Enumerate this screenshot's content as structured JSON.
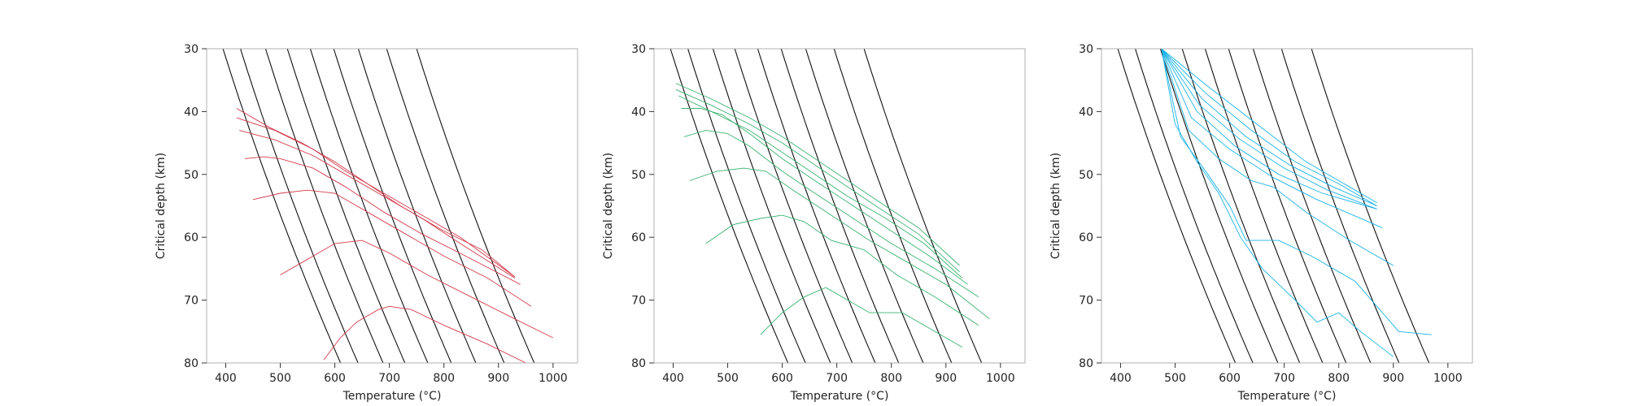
{
  "colors": {
    "spine": "#b0b0b0",
    "geotherm": "#111111",
    "panel_1": "#d33b4b",
    "panel_2": "#3cb371",
    "panel_3": "#1cb3e6"
  },
  "chart_data": [
    {
      "type": "line",
      "xlabel": "Temperature (°C)",
      "ylabel": "Critical depth (km)",
      "xlim": [
        365,
        1045
      ],
      "ylim": [
        80,
        30
      ],
      "y_inverted": true,
      "xticks": [
        400,
        500,
        600,
        700,
        800,
        900,
        1000
      ],
      "yticks": [
        30,
        40,
        50,
        60,
        70,
        80
      ],
      "grid": false,
      "line_color": "#d33b4b",
      "geotherms": [
        [
          395,
          30
        ],
        [
          427,
          30
        ],
        [
          473,
          30
        ],
        [
          513,
          30
        ],
        [
          555,
          30
        ],
        [
          598,
          30
        ],
        [
          643,
          30
        ],
        [
          695,
          30
        ],
        [
          750,
          30
        ]
      ],
      "series": [
        {
          "values": [
            [
              420,
              39.5
            ],
            [
              480,
              42.5
            ],
            [
              540,
              45
            ],
            [
              600,
              48
            ],
            [
              660,
              51.5
            ],
            [
              720,
              55
            ],
            [
              800,
              59
            ],
            [
              870,
              62
            ],
            [
              930,
              66.3
            ]
          ]
        },
        {
          "values": [
            [
              420,
              41
            ],
            [
              490,
              43
            ],
            [
              560,
              46
            ],
            [
              620,
              49.5
            ],
            [
              690,
              53
            ],
            [
              760,
              56.5
            ],
            [
              830,
              60
            ],
            [
              930,
              66.3
            ]
          ]
        },
        {
          "values": [
            [
              425,
              43
            ],
            [
              490,
              44.5
            ],
            [
              560,
              47
            ],
            [
              620,
              50
            ],
            [
              690,
              53.5
            ],
            [
              760,
              57
            ],
            [
              830,
              61
            ],
            [
              930,
              66.5
            ]
          ]
        },
        {
          "values": [
            [
              435,
              47.5
            ],
            [
              470,
              47.2
            ],
            [
              500,
              47.5
            ],
            [
              560,
              49
            ],
            [
              620,
              52
            ],
            [
              690,
              56
            ],
            [
              760,
              59.5
            ],
            [
              840,
              63
            ],
            [
              940,
              67.5
            ]
          ]
        },
        {
          "values": [
            [
              450,
              54
            ],
            [
              500,
              53
            ],
            [
              550,
              52.5
            ],
            [
              600,
              53
            ],
            [
              660,
              56
            ],
            [
              730,
              59.5
            ],
            [
              800,
              63
            ],
            [
              880,
              66.5
            ],
            [
              960,
              71
            ]
          ]
        },
        {
          "values": [
            [
              500,
              66
            ],
            [
              550,
              63.5
            ],
            [
              600,
              61
            ],
            [
              650,
              60.5
            ],
            [
              700,
              62.5
            ],
            [
              770,
              66
            ],
            [
              850,
              69.5
            ],
            [
              930,
              73
            ],
            [
              1000,
              76
            ]
          ]
        },
        {
          "values": [
            [
              580,
              79.5
            ],
            [
              610,
              76
            ],
            [
              640,
              73.5
            ],
            [
              680,
              71.5
            ],
            [
              700,
              71
            ],
            [
              740,
              71.5
            ],
            [
              800,
              74
            ],
            [
              880,
              77
            ],
            [
              950,
              80
            ]
          ]
        }
      ]
    },
    {
      "type": "line",
      "xlabel": "Temperature (°C)",
      "ylabel": "Critical depth (km)",
      "xlim": [
        365,
        1045
      ],
      "ylim": [
        80,
        30
      ],
      "y_inverted": true,
      "xticks": [
        400,
        500,
        600,
        700,
        800,
        900,
        1000
      ],
      "yticks": [
        30,
        40,
        50,
        60,
        70,
        80
      ],
      "grid": false,
      "line_color": "#3cb371",
      "geotherms": [
        [
          395,
          30
        ],
        [
          427,
          30
        ],
        [
          473,
          30
        ],
        [
          513,
          30
        ],
        [
          555,
          30
        ],
        [
          598,
          30
        ],
        [
          643,
          30
        ],
        [
          695,
          30
        ],
        [
          750,
          30
        ]
      ],
      "series": [
        {
          "values": [
            [
              405,
              35.5
            ],
            [
              470,
              38
            ],
            [
              540,
              41
            ],
            [
              600,
              44
            ],
            [
              660,
              47.5
            ],
            [
              720,
              51
            ],
            [
              780,
              54.5
            ],
            [
              850,
              58.5
            ],
            [
              925,
              64.5
            ]
          ]
        },
        {
          "values": [
            [
              405,
              36.5
            ],
            [
              470,
              39
            ],
            [
              540,
              42
            ],
            [
              600,
              45
            ],
            [
              660,
              48.5
            ],
            [
              720,
              52
            ],
            [
              780,
              55.5
            ],
            [
              850,
              59.5
            ],
            [
              925,
              65.5
            ]
          ]
        },
        {
          "values": [
            [
              410,
              37.5
            ],
            [
              470,
              40
            ],
            [
              540,
              43
            ],
            [
              600,
              46.5
            ],
            [
              660,
              50
            ],
            [
              720,
              53.5
            ],
            [
              790,
              57
            ],
            [
              860,
              61
            ],
            [
              930,
              66.5
            ]
          ]
        },
        {
          "values": [
            [
              415,
              39.5
            ],
            [
              450,
              39.5
            ],
            [
              490,
              40.5
            ],
            [
              540,
              43.5
            ],
            [
              600,
              47.5
            ],
            [
              660,
              51
            ],
            [
              730,
              55
            ],
            [
              800,
              59
            ],
            [
              870,
              63
            ],
            [
              940,
              67.5
            ]
          ]
        },
        {
          "values": [
            [
              420,
              44
            ],
            [
              460,
              43
            ],
            [
              500,
              43.5
            ],
            [
              540,
              45.5
            ],
            [
              600,
              49.5
            ],
            [
              660,
              53
            ],
            [
              730,
              57
            ],
            [
              800,
              61
            ],
            [
              880,
              65
            ],
            [
              960,
              69.5
            ]
          ]
        },
        {
          "values": [
            [
              430,
              51
            ],
            [
              480,
              49.5
            ],
            [
              530,
              49
            ],
            [
              570,
              49.5
            ],
            [
              620,
              52.5
            ],
            [
              690,
              56.5
            ],
            [
              760,
              60.5
            ],
            [
              830,
              64
            ],
            [
              900,
              67.5
            ],
            [
              980,
              73
            ]
          ]
        },
        {
          "values": [
            [
              460,
              61
            ],
            [
              510,
              58
            ],
            [
              560,
              57
            ],
            [
              600,
              56.5
            ],
            [
              640,
              57.5
            ],
            [
              690,
              60.5
            ],
            [
              750,
              62
            ],
            [
              810,
              66
            ],
            [
              880,
              69.5
            ],
            [
              960,
              74
            ]
          ]
        },
        {
          "values": [
            [
              560,
              75.5
            ],
            [
              600,
              72
            ],
            [
              640,
              69.5
            ],
            [
              680,
              68
            ],
            [
              720,
              70
            ],
            [
              760,
              72
            ],
            [
              820,
              72
            ],
            [
              870,
              74.5
            ],
            [
              930,
              77.5
            ]
          ]
        }
      ]
    },
    {
      "type": "line",
      "xlabel": "Temperature (°C)",
      "ylabel": "Critical depth (km)",
      "xlim": [
        365,
        1045
      ],
      "ylim": [
        80,
        30
      ],
      "y_inverted": true,
      "xticks": [
        400,
        500,
        600,
        700,
        800,
        900,
        1000
      ],
      "yticks": [
        30,
        40,
        50,
        60,
        70,
        80
      ],
      "grid": false,
      "line_color": "#1cb3e6",
      "geotherms": [
        [
          395,
          30
        ],
        [
          427,
          30
        ],
        [
          473,
          30
        ],
        [
          513,
          30
        ],
        [
          555,
          30
        ],
        [
          598,
          30
        ],
        [
          643,
          30
        ],
        [
          695,
          30
        ],
        [
          750,
          30
        ]
      ],
      "series": [
        {
          "values": [
            [
              395,
              30
            ],
            [
              475,
              30
            ],
            [
              560,
              36
            ],
            [
              650,
              42
            ],
            [
              740,
              48
            ],
            [
              800,
              51
            ],
            [
              870,
              54.5
            ]
          ]
        },
        {
          "values": [
            [
              395,
              30
            ],
            [
              475,
              30
            ],
            [
              555,
              37
            ],
            [
              640,
              43
            ],
            [
              720,
              48
            ],
            [
              800,
              51.5
            ],
            [
              870,
              55
            ]
          ]
        },
        {
          "values": [
            [
              395,
              30
            ],
            [
              475,
              30
            ],
            [
              550,
              38
            ],
            [
              630,
              44
            ],
            [
              710,
              48.5
            ],
            [
              790,
              52
            ],
            [
              870,
              55
            ]
          ]
        },
        {
          "values": [
            [
              395,
              30
            ],
            [
              475,
              30
            ],
            [
              545,
              39
            ],
            [
              620,
              44.5
            ],
            [
              700,
              49
            ],
            [
              780,
              52.5
            ],
            [
              870,
              55.5
            ]
          ]
        },
        {
          "values": [
            [
              395,
              30
            ],
            [
              475,
              30
            ],
            [
              540,
              40
            ],
            [
              610,
              45.5
            ],
            [
              690,
              50
            ],
            [
              770,
              53
            ],
            [
              870,
              55.5
            ]
          ]
        },
        {
          "values": [
            [
              395,
              30
            ],
            [
              475,
              30
            ],
            [
              530,
              41
            ],
            [
              600,
              46
            ],
            [
              680,
              50.5
            ],
            [
              760,
              54
            ],
            [
              880,
              58.5
            ]
          ]
        },
        {
          "values": [
            [
              395,
              30
            ],
            [
              475,
              30
            ],
            [
              525,
              43
            ],
            [
              580,
              47.5
            ],
            [
              640,
              51
            ],
            [
              680,
              52
            ],
            [
              740,
              56
            ],
            [
              820,
              60.5
            ],
            [
              900,
              64.5
            ]
          ]
        },
        {
          "values": [
            [
              395,
              30
            ],
            [
              475,
              30
            ],
            [
              510,
              44
            ],
            [
              560,
              50
            ],
            [
              600,
              55
            ],
            [
              630,
              60.5
            ],
            [
              690,
              60.5
            ],
            [
              750,
              63
            ],
            [
              830,
              67
            ],
            [
              910,
              75
            ],
            [
              970,
              75.5
            ]
          ]
        },
        {
          "values": [
            [
              395,
              30
            ],
            [
              475,
              30
            ],
            [
              500,
              42
            ],
            [
              540,
              48
            ],
            [
              580,
              53
            ],
            [
              620,
              60
            ],
            [
              660,
              65
            ],
            [
              720,
              70
            ],
            [
              760,
              73.5
            ],
            [
              800,
              72
            ],
            [
              840,
              75
            ],
            [
              900,
              79
            ]
          ]
        }
      ]
    }
  ]
}
